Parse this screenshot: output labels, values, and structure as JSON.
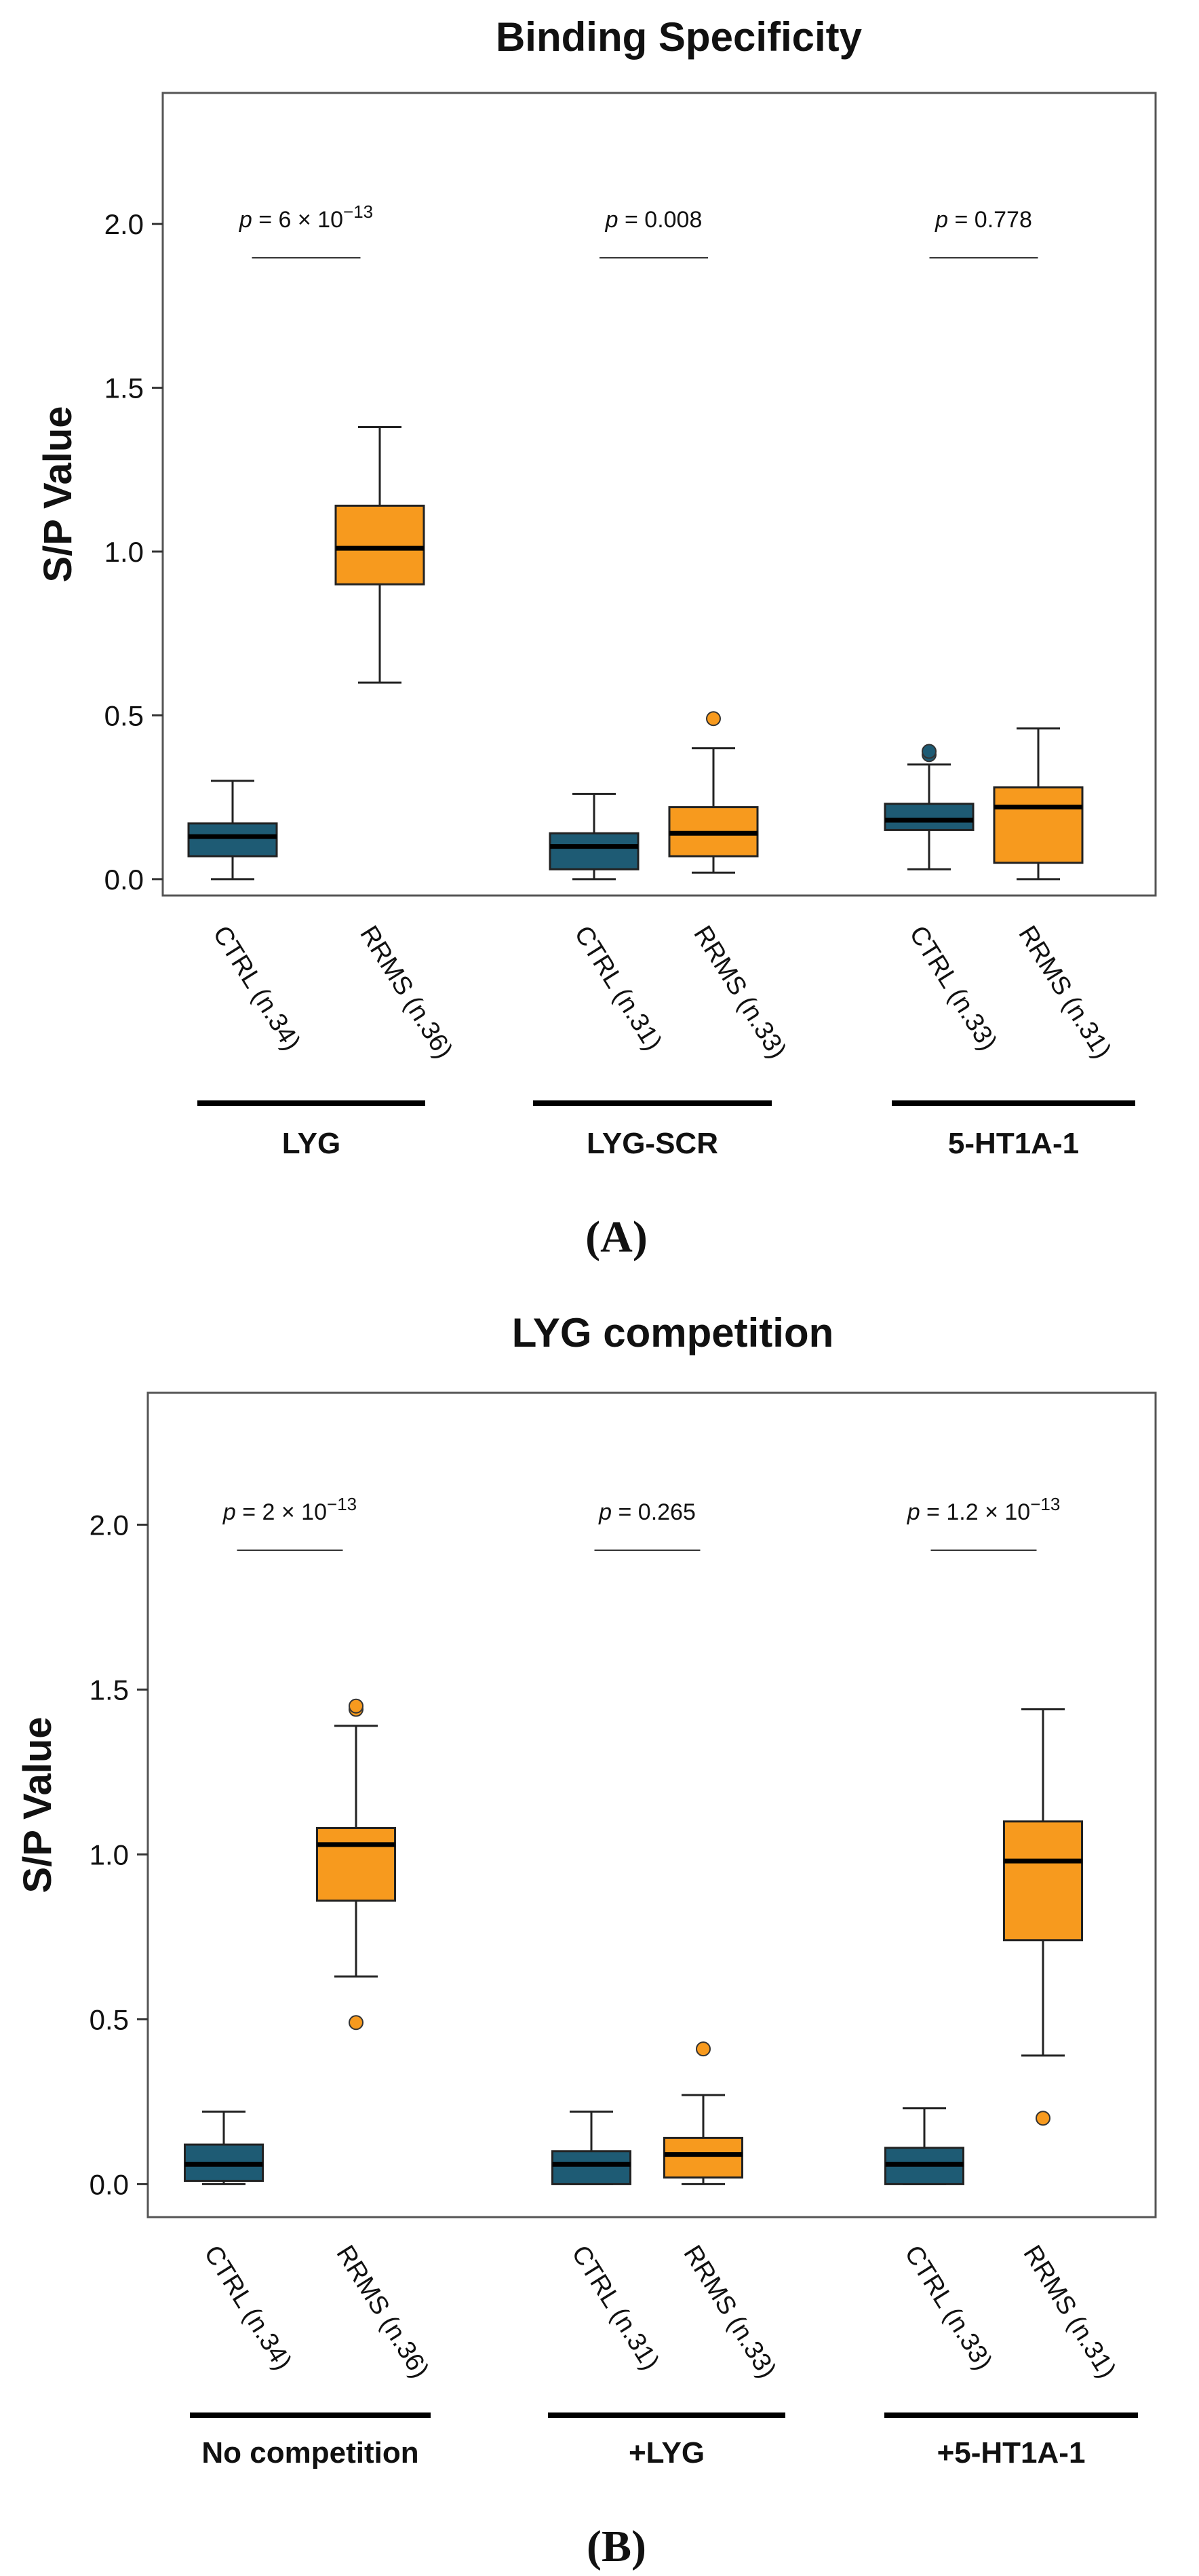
{
  "chart_data": [
    {
      "type": "box",
      "panel_label": "A",
      "title": "Binding Specificity",
      "ylabel": "S/P Value",
      "ylim": [
        -0.05,
        2.4
      ],
      "yticks": [
        "0.0",
        "0.5",
        "1.0",
        "1.5",
        "2.0"
      ],
      "series_colors": {
        "CTRL": "#1e5b74",
        "RRMS": "#f79a1e"
      },
      "groups": [
        {
          "name": "LYG",
          "p_value": {
            "prefix": "p",
            "text": " = 6 × 10",
            "exponent": "−13"
          },
          "boxes": [
            {
              "label": "CTRL (n.34)",
              "series": "CTRL",
              "whisker_low": 0.0,
              "q1": 0.07,
              "median": 0.13,
              "q3": 0.17,
              "whisker_high": 0.3,
              "outliers": []
            },
            {
              "label": "RRMS (n.36)",
              "series": "RRMS",
              "whisker_low": 0.6,
              "q1": 0.9,
              "median": 1.01,
              "q3": 1.14,
              "whisker_high": 1.38,
              "outliers": []
            }
          ]
        },
        {
          "name": "LYG-SCR",
          "p_value": {
            "prefix": "p",
            "text": " = 0.008",
            "exponent": ""
          },
          "boxes": [
            {
              "label": "CTRL (n.31)",
              "series": "CTRL",
              "whisker_low": 0.0,
              "q1": 0.03,
              "median": 0.1,
              "q3": 0.14,
              "whisker_high": 0.26,
              "outliers": []
            },
            {
              "label": "RRMS (n.33)",
              "series": "RRMS",
              "whisker_low": 0.02,
              "q1": 0.07,
              "median": 0.14,
              "q3": 0.22,
              "whisker_high": 0.4,
              "outliers": [
                0.49
              ]
            }
          ]
        },
        {
          "name": "5-HT1A-1",
          "p_value": {
            "prefix": "p",
            "text": " = 0.778",
            "exponent": ""
          },
          "boxes": [
            {
              "label": "CTRL (n.33)",
              "series": "CTRL",
              "whisker_low": 0.03,
              "q1": 0.15,
              "median": 0.18,
              "q3": 0.23,
              "whisker_high": 0.35,
              "outliers": [
                0.38,
                0.39
              ]
            },
            {
              "label": "RRMS (n.31)",
              "series": "RRMS",
              "whisker_low": 0.0,
              "q1": 0.05,
              "median": 0.22,
              "q3": 0.28,
              "whisker_high": 0.46,
              "outliers": []
            }
          ]
        }
      ]
    },
    {
      "type": "box",
      "panel_label": "B",
      "title": "LYG competition",
      "ylabel": "S/P Value",
      "ylim": [
        -0.1,
        2.4
      ],
      "yticks": [
        "0.0",
        "0.5",
        "1.0",
        "1.5",
        "2.0"
      ],
      "series_colors": {
        "CTRL": "#1e5b74",
        "RRMS": "#f79a1e"
      },
      "groups": [
        {
          "name": "No competition",
          "p_value": {
            "prefix": "p",
            "text": " = 2 × 10",
            "exponent": "−13"
          },
          "boxes": [
            {
              "label": "CTRL (n.34)",
              "series": "CTRL",
              "whisker_low": 0.0,
              "q1": 0.01,
              "median": 0.06,
              "q3": 0.12,
              "whisker_high": 0.22,
              "outliers": []
            },
            {
              "label": "RRMS (n.36)",
              "series": "RRMS",
              "whisker_low": 0.63,
              "q1": 0.86,
              "median": 1.03,
              "q3": 1.08,
              "whisker_high": 1.39,
              "outliers": [
                0.49,
                1.44,
                1.45
              ]
            }
          ]
        },
        {
          "name": "+LYG",
          "p_value": {
            "prefix": "p",
            "text": " = 0.265",
            "exponent": ""
          },
          "boxes": [
            {
              "label": "CTRL (n.31)",
              "series": "CTRL",
              "whisker_low": 0.0,
              "q1": 0.0,
              "median": 0.06,
              "q3": 0.1,
              "whisker_high": 0.22,
              "outliers": []
            },
            {
              "label": "RRMS (n.33)",
              "series": "RRMS",
              "whisker_low": 0.0,
              "q1": 0.02,
              "median": 0.09,
              "q3": 0.14,
              "whisker_high": 0.27,
              "outliers": [
                0.41
              ]
            }
          ]
        },
        {
          "name": "+5-HT1A-1",
          "p_value": {
            "prefix": "p",
            "text": " = 1.2 × 10",
            "exponent": "−13"
          },
          "boxes": [
            {
              "label": "CTRL (n.33)",
              "series": "CTRL",
              "whisker_low": 0.0,
              "q1": 0.0,
              "median": 0.06,
              "q3": 0.11,
              "whisker_high": 0.23,
              "outliers": []
            },
            {
              "label": "RRMS (n.31)",
              "series": "RRMS",
              "whisker_low": 0.39,
              "q1": 0.74,
              "median": 0.98,
              "q3": 1.1,
              "whisker_high": 1.44,
              "outliers": [
                0.2
              ]
            }
          ]
        }
      ]
    }
  ]
}
